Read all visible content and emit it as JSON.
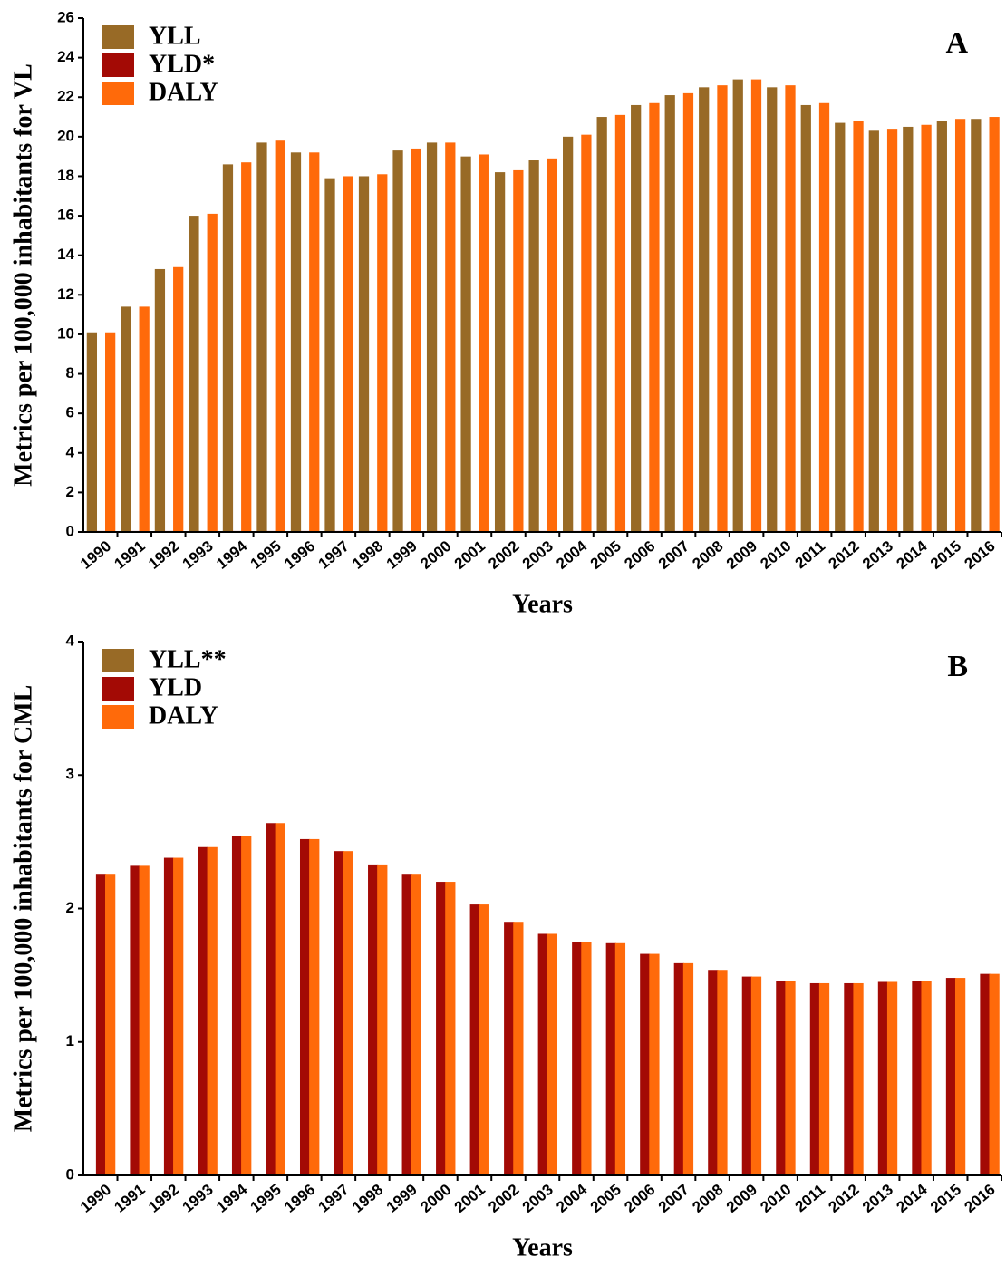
{
  "chart_data": [
    {
      "type": "bar",
      "panel_label": "A",
      "y_label": "Metrics per 100,000 inhabitants for VL",
      "x_label": "Years",
      "categories": [
        "1990",
        "1991",
        "1992",
        "1993",
        "1994",
        "1995",
        "1996",
        "1997",
        "1998",
        "1999",
        "2000",
        "2001",
        "2002",
        "2003",
        "2004",
        "2005",
        "2006",
        "2007",
        "2008",
        "2009",
        "2010",
        "2011",
        "2012",
        "2013",
        "2014",
        "2015",
        "2016"
      ],
      "series": [
        {
          "name": "YLL",
          "color": "#986a26",
          "values": [
            10.1,
            11.4,
            13.3,
            16.0,
            18.6,
            19.7,
            19.2,
            17.9,
            18.0,
            19.3,
            19.7,
            19.0,
            18.2,
            18.8,
            20.0,
            21.0,
            21.6,
            22.1,
            22.5,
            22.9,
            22.5,
            21.6,
            20.7,
            20.3,
            20.5,
            20.8,
            20.9
          ]
        },
        {
          "name": "YLD*",
          "color": "#a30a05",
          "values": [
            0.05,
            0.05,
            0.05,
            0.05,
            0.05,
            0.05,
            0.05,
            0.05,
            0.05,
            0.05,
            0.05,
            0.05,
            0.05,
            0.05,
            0.05,
            0.05,
            0.05,
            0.05,
            0.05,
            0.05,
            0.05,
            0.05,
            0.05,
            0.05,
            0.05,
            0.05,
            0.05
          ]
        },
        {
          "name": "DALY",
          "color": "#ff6a0a",
          "values": [
            10.1,
            11.4,
            13.4,
            16.1,
            18.7,
            19.8,
            19.2,
            18.0,
            18.1,
            19.4,
            19.7,
            19.1,
            18.3,
            18.9,
            20.1,
            21.1,
            21.7,
            22.2,
            22.6,
            22.9,
            22.6,
            21.7,
            20.8,
            20.4,
            20.6,
            20.9,
            21.0
          ]
        }
      ],
      "ylim": [
        0,
        26
      ],
      "yticks": [
        0,
        2,
        4,
        6,
        8,
        10,
        12,
        14,
        16,
        18,
        20,
        22,
        24,
        26
      ]
    },
    {
      "type": "bar",
      "panel_label": "B",
      "y_label": "Metrics per 100,000 inhabitants for CML",
      "x_label": "Years",
      "categories": [
        "1990",
        "1991",
        "1992",
        "1993",
        "1994",
        "1995",
        "1996",
        "1997",
        "1998",
        "1999",
        "2000",
        "2001",
        "2002",
        "2003",
        "2004",
        "2005",
        "2006",
        "2007",
        "2008",
        "2009",
        "2010",
        "2011",
        "2012",
        "2013",
        "2014",
        "2015",
        "2016"
      ],
      "series": [
        {
          "name": "YLL**",
          "color": "#986a26",
          "values": [
            0,
            0,
            0,
            0,
            0,
            0,
            0,
            0,
            0,
            0,
            0,
            0,
            0,
            0,
            0,
            0,
            0,
            0,
            0,
            0,
            0,
            0,
            0,
            0,
            0,
            0,
            0
          ]
        },
        {
          "name": "YLD",
          "color": "#a30a05",
          "values": [
            2.26,
            2.32,
            2.38,
            2.46,
            2.54,
            2.64,
            2.52,
            2.43,
            2.33,
            2.26,
            2.2,
            2.03,
            1.9,
            1.81,
            1.75,
            1.74,
            1.66,
            1.59,
            1.54,
            1.49,
            1.46,
            1.44,
            1.44,
            1.45,
            1.46,
            1.48,
            1.51
          ]
        },
        {
          "name": "DALY",
          "color": "#ff6a0a",
          "values": [
            2.26,
            2.32,
            2.38,
            2.46,
            2.54,
            2.64,
            2.52,
            2.43,
            2.33,
            2.26,
            2.2,
            2.03,
            1.9,
            1.81,
            1.75,
            1.74,
            1.66,
            1.59,
            1.54,
            1.49,
            1.46,
            1.44,
            1.44,
            1.45,
            1.46,
            1.48,
            1.51
          ]
        }
      ],
      "ylim": [
        0,
        4
      ],
      "yticks": [
        0,
        1,
        2,
        3,
        4
      ]
    }
  ]
}
